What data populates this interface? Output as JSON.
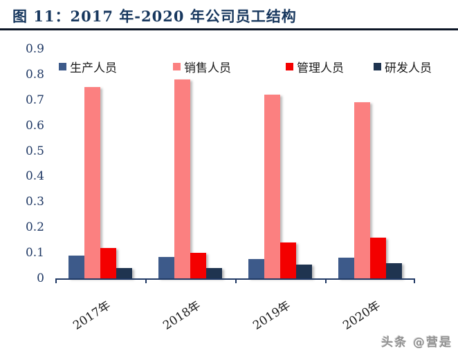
{
  "header": {
    "title": "图 11：2017 年-2020 年公司员工结构"
  },
  "watermark": {
    "text": "头条 @营是"
  },
  "chart_data": {
    "type": "bar",
    "title": "2017年-2020年公司员工结构",
    "categories": [
      "2017年",
      "2018年",
      "2019年",
      "2020年"
    ],
    "series": [
      {
        "name": "生产人员",
        "color": "#3D5A8A",
        "values": [
          0.09,
          0.085,
          0.075,
          0.08
        ]
      },
      {
        "name": "销售人员",
        "color": "#FB8080",
        "values": [
          0.75,
          0.78,
          0.72,
          0.69
        ]
      },
      {
        "name": "管理人员",
        "color": "#F40000",
        "values": [
          0.12,
          0.1,
          0.14,
          0.16
        ]
      },
      {
        "name": "研发人员",
        "color": "#1F3450",
        "values": [
          0.04,
          0.04,
          0.055,
          0.06
        ]
      }
    ],
    "ylim": [
      0,
      0.9
    ],
    "yticks": [
      0,
      0.1,
      0.2,
      0.3,
      0.4,
      0.5,
      0.6,
      0.7,
      0.8,
      0.9
    ],
    "grid": false,
    "legend_position": "top",
    "axis_color": "#1F3864",
    "tick_label_color": "#1F3864",
    "xlabel": "",
    "ylabel": ""
  }
}
